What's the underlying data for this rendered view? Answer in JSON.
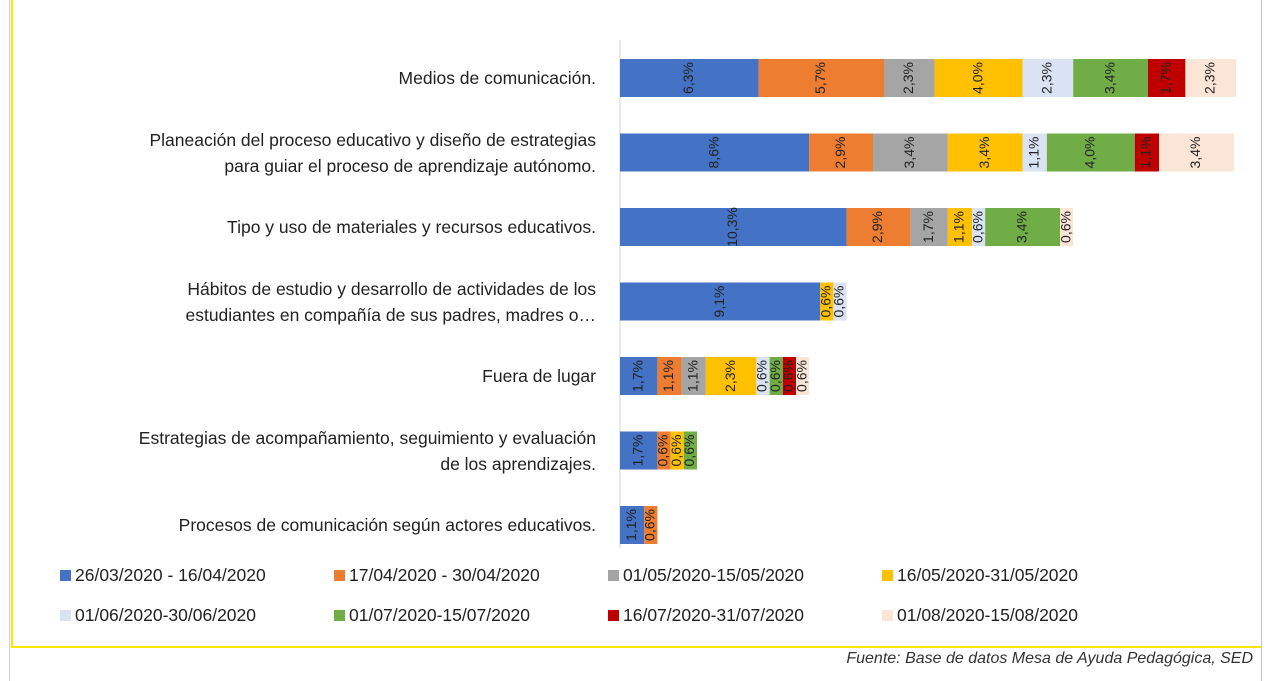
{
  "chart_data": {
    "type": "stacked-barh",
    "source": "Fuente: Base de datos Mesa de Ayuda Pedagógica, SED",
    "categories": [
      "Medios de comunicación.",
      "Planeación del proceso educativo y diseño de estrategias\npara guiar el proceso de aprendizaje autónomo.",
      "Tipo y uso de materiales y recursos educativos.",
      "Hábitos de estudio y desarrollo de actividades de los\nestudiantes en compañía de sus padres, madres o…",
      "Fuera de lugar",
      "Estrategias de acompañamiento,  seguimiento y evaluación\nde los aprendizajes.",
      "Procesos de comunicación según actores educativos."
    ],
    "xlim": [
      0,
      28
    ],
    "series": [
      {
        "name": "26/03/2020 - 16/04/2020",
        "color": "#4472c4",
        "values": [
          6.3,
          8.6,
          10.3,
          9.1,
          1.7,
          1.7,
          1.1
        ],
        "value_labels": [
          "6,3%",
          "8,6%",
          "10,3%",
          "9,1%",
          "1,7%",
          "1,7%",
          "1,1%"
        ]
      },
      {
        "name": "17/04/2020 - 30/04/2020",
        "color": "#ed7d31",
        "values": [
          5.7,
          2.9,
          2.9,
          null,
          1.1,
          0.6,
          0.6
        ],
        "value_labels": [
          "5,7%",
          "2,9%",
          "2,9%",
          null,
          "1,1%",
          "0,6%",
          "0,6%"
        ]
      },
      {
        "name": "01/05/2020-15/05/2020",
        "color": "#a5a5a5",
        "values": [
          2.3,
          3.4,
          1.7,
          null,
          1.1,
          null,
          null
        ],
        "value_labels": [
          "2,3%",
          "3,4%",
          "1,7%",
          null,
          "1,1%",
          null,
          null
        ]
      },
      {
        "name": "16/05/2020-31/05/2020",
        "color": "#ffc000",
        "values": [
          4.0,
          3.4,
          1.1,
          0.6,
          2.3,
          0.6,
          null
        ],
        "value_labels": [
          "4,0%",
          "3,4%",
          "1,1%",
          "0,6%",
          "2,3%",
          "0,6%",
          null
        ]
      },
      {
        "name": "01/06/2020-30/06/2020",
        "color": "#dae3f3",
        "values": [
          2.3,
          1.1,
          0.6,
          0.6,
          0.6,
          null,
          null
        ],
        "value_labels": [
          "2,3%",
          "1,1%",
          "0,6%",
          "0,6%",
          "0,6%",
          null,
          null
        ]
      },
      {
        "name": "01/07/2020-15/07/2020",
        "color": "#70ad47",
        "values": [
          3.4,
          4.0,
          3.4,
          null,
          0.6,
          0.6,
          null
        ],
        "value_labels": [
          "3,4%",
          "4,0%",
          "3,4%",
          null,
          "0,6%",
          "0,6%",
          null
        ]
      },
      {
        "name": "16/07/2020-31/07/2020",
        "color": "#c00000",
        "values": [
          1.7,
          1.1,
          null,
          null,
          0.6,
          null,
          null
        ],
        "value_labels": [
          "1,7%",
          "1,1%",
          null,
          null,
          "0,6%",
          null,
          null
        ]
      },
      {
        "name": "01/08/2020-15/08/2020",
        "color": "#fbe5d6",
        "values": [
          2.3,
          3.4,
          0.6,
          null,
          0.6,
          null,
          null
        ],
        "value_labels": [
          "2,3%",
          "3,4%",
          "0,6%",
          null,
          "0,6%",
          null,
          null
        ]
      }
    ]
  }
}
